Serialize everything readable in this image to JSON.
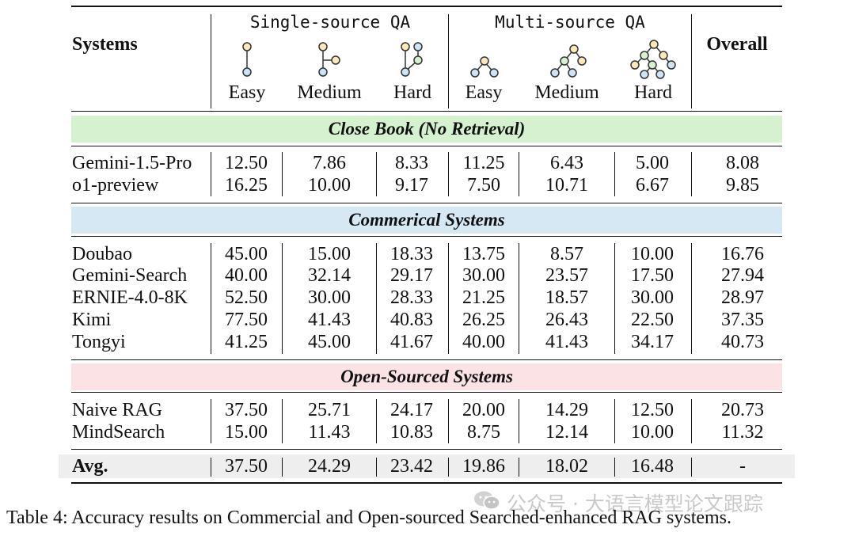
{
  "table": {
    "header": {
      "systems": "Systems",
      "group_single": "Single-source QA",
      "group_multi": "Multi-source QA",
      "overall": "Overall",
      "subcols": [
        "Easy",
        "Medium",
        "Hard",
        "Easy",
        "Medium",
        "Hard"
      ],
      "icons": [
        "chain-2-node-icon",
        "chain-3-node-icon",
        "branch-4-node-icon",
        "tree-3-node-icon",
        "tree-6-node-icon",
        "tree-10-node-icon"
      ]
    },
    "sections": [
      {
        "title": "Close Book (No Retrieval)",
        "color": "#d5f1cf",
        "rows": [
          {
            "system": "Gemini-1.5-Pro",
            "values": [
              "12.50",
              "7.86",
              "8.33",
              "11.25",
              "6.43",
              "5.00",
              "8.08"
            ]
          },
          {
            "system": "o1-preview",
            "values": [
              "16.25",
              "10.00",
              "9.17",
              "7.50",
              "10.71",
              "6.67",
              "9.85"
            ]
          }
        ]
      },
      {
        "title": "Commerical Systems",
        "color": "#d6e8f4",
        "rows": [
          {
            "system": "Doubao",
            "values": [
              "45.00",
              "15.00",
              "18.33",
              "13.75",
              "8.57",
              "10.00",
              "16.76"
            ]
          },
          {
            "system": "Gemini-Search",
            "values": [
              "40.00",
              "32.14",
              "29.17",
              "30.00",
              "23.57",
              "17.50",
              "27.94"
            ]
          },
          {
            "system": "ERNIE-4.0-8K",
            "values": [
              "52.50",
              "30.00",
              "28.33",
              "21.25",
              "18.57",
              "30.00",
              "28.97"
            ]
          },
          {
            "system": "Kimi",
            "values": [
              "77.50",
              "41.43",
              "40.83",
              "26.25",
              "26.43",
              "22.50",
              "37.35"
            ]
          },
          {
            "system": "Tongyi",
            "values": [
              "41.25",
              "45.00",
              "41.67",
              "40.00",
              "41.43",
              "34.17",
              "40.73"
            ]
          }
        ]
      },
      {
        "title": "Open-Sourced Systems",
        "color": "#fbe2e4",
        "rows": [
          {
            "system": "Naive RAG",
            "values": [
              "37.50",
              "25.71",
              "24.17",
              "20.00",
              "14.29",
              "12.50",
              "20.73"
            ]
          },
          {
            "system": "MindSearch",
            "values": [
              "15.00",
              "11.43",
              "10.83",
              "8.75",
              "12.14",
              "10.00",
              "11.32"
            ]
          }
        ]
      }
    ],
    "avg": {
      "label": "Avg.",
      "values": [
        "37.50",
        "24.29",
        "23.42",
        "19.86",
        "18.02",
        "16.48",
        "-"
      ],
      "color": "#eeeeee"
    }
  },
  "caption": "Table 4: Accuracy results on Commercial and Open-sourced Searched-enhanced RAG systems.",
  "watermark": "公众号 · 大语言模型论文跟踪"
}
